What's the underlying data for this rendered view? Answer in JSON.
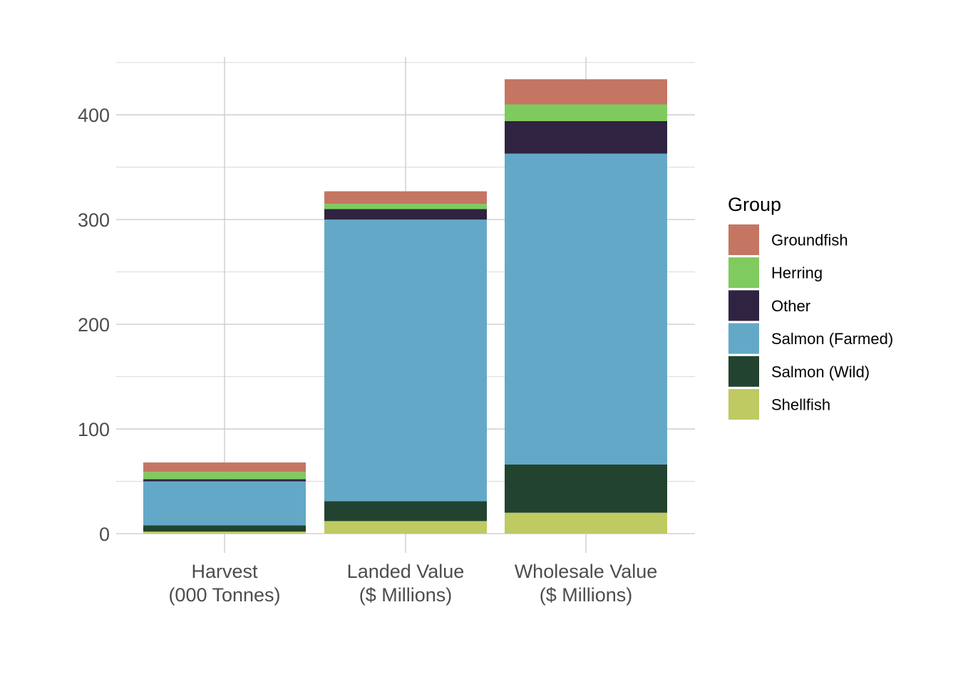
{
  "chart_data": {
    "type": "bar",
    "stacked": true,
    "title": "",
    "xlabel": "",
    "ylabel": "",
    "categories": [
      "Harvest\n(000 Tonnes)",
      "Landed Value\n($ Millions)",
      "Wholesale Value\n($ Millions)"
    ],
    "ylim": [
      0,
      455
    ],
    "yticks": [
      0,
      100,
      200,
      300,
      400
    ],
    "grid": true,
    "legend": {
      "title": "Group",
      "placement": "right"
    },
    "series": [
      {
        "name": "Shellfish",
        "color": "#bfca62",
        "values": [
          2,
          12,
          20
        ]
      },
      {
        "name": "Salmon (Wild)",
        "color": "#22432f",
        "values": [
          6,
          19,
          46
        ]
      },
      {
        "name": "Salmon (Farmed)",
        "color": "#63a9c7",
        "values": [
          42,
          269,
          297
        ]
      },
      {
        "name": "Other",
        "color": "#2f2341",
        "values": [
          2,
          10,
          31
        ]
      },
      {
        "name": "Herring",
        "color": "#7fcb5f",
        "values": [
          7,
          5,
          16
        ]
      },
      {
        "name": "Groundfish",
        "color": "#c47663",
        "values": [
          9,
          12,
          24
        ]
      }
    ],
    "legend_order": [
      "Groundfish",
      "Herring",
      "Other",
      "Salmon (Farmed)",
      "Salmon (Wild)",
      "Shellfish"
    ]
  }
}
